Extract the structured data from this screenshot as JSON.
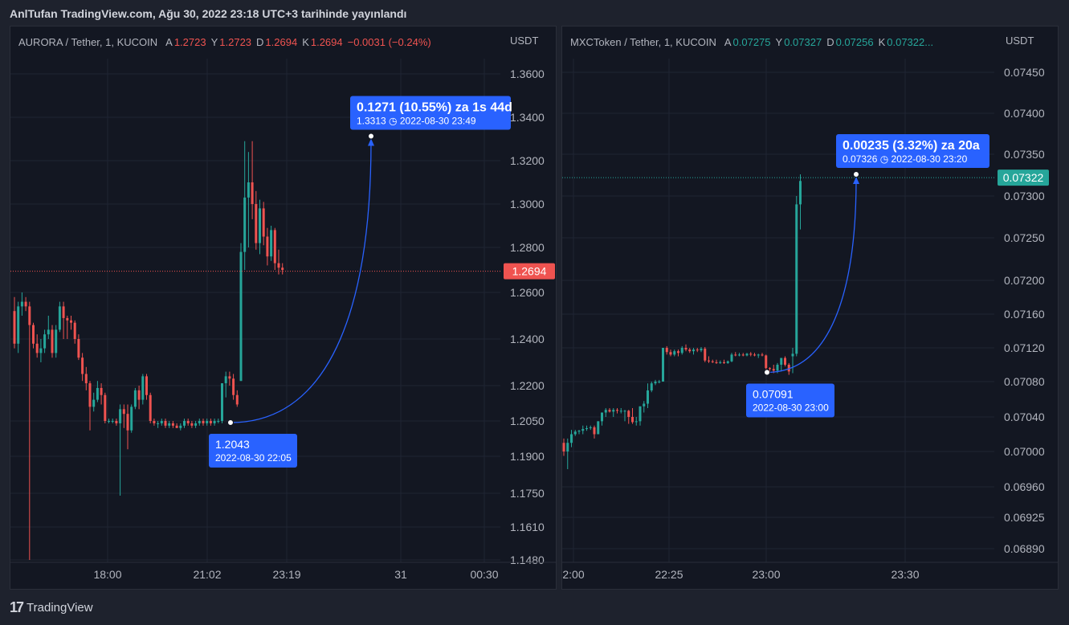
{
  "header": {
    "caption": "AnlTufan TradingView.com, Ağu 30, 2022 23:18 UTC+3 tarihinde yayınlandı"
  },
  "footer": {
    "brand": "TradingView",
    "logo_icon": "tradingview-logo-icon"
  },
  "colors": {
    "up": "#26a69a",
    "down": "#ef5350",
    "measure": "#2962ff",
    "bg": "#131722",
    "grid": "#1f2433",
    "text": "#b2b5be"
  },
  "left_pane": {
    "symbol": "AURORA / Tether, 1, KUCOIN",
    "ohlc": [
      {
        "k": "A",
        "v": "1.2723"
      },
      {
        "k": "Y",
        "v": "1.2723"
      },
      {
        "k": "D",
        "v": "1.2694"
      },
      {
        "k": "K",
        "v": "1.2694"
      }
    ],
    "change": "−0.0031 (−0.24%)",
    "ohlc_color": "#ef5350",
    "unit": "USDT",
    "last_price": "1.2694",
    "measure_text": "0.1271 (10.55%) za 1s 44d",
    "measure_sub": "1.3313 ◷ 2022-08-30  23:49",
    "start_label": "1.2043",
    "start_sub": "2022-08-30 22:05"
  },
  "right_pane": {
    "symbol": "MXCToken / Tether, 1, KUCOIN",
    "ohlc": [
      {
        "k": "A",
        "v": "0.07275"
      },
      {
        "k": "Y",
        "v": "0.07327"
      },
      {
        "k": "D",
        "v": "0.07256"
      },
      {
        "k": "K",
        "v": "0.07322..."
      }
    ],
    "change": "",
    "ohlc_color": "#26a69a",
    "unit": "USDT",
    "last_price": "0.07322",
    "measure_text": "0.00235 (3.32%) za 20a",
    "measure_sub": "0.07326 ◷ 2022-08-30  23:20",
    "start_label": "0.07091",
    "start_sub": "2022-08-30 23:00"
  },
  "chart_data": [
    {
      "type": "candlestick",
      "title": "AURORA / Tether, 1, KUCOIN",
      "y_ticks": [
        1.36,
        1.34,
        1.32,
        1.3,
        1.28,
        1.26,
        1.24,
        1.22,
        1.205,
        1.19,
        1.175,
        1.161,
        1.148
      ],
      "y_tick_labels": [
        "1.3600",
        "1.3400",
        "1.3200",
        "1.3000",
        "1.2800",
        "1.2600",
        "1.2400",
        "1.2200",
        "1.2050",
        "1.1900",
        "1.1750",
        "1.1610",
        "1.1480"
      ],
      "x_ticks": [
        "18:00",
        "21:02",
        "23:19",
        "31",
        "00:30"
      ],
      "last_price": 1.2694,
      "measure": {
        "start_price": 1.2043,
        "start_time": "2022-08-30 22:05",
        "end_price": 1.3313,
        "end_time": "2022-08-30 23:49",
        "change": 0.1271,
        "change_pct": 10.55
      },
      "candles": [
        [
          1.252,
          1.258,
          1.236,
          1.238
        ],
        [
          1.238,
          1.256,
          1.234,
          1.254
        ],
        [
          1.254,
          1.26,
          1.25,
          1.256
        ],
        [
          1.256,
          1.258,
          1.252,
          1.254
        ],
        [
          1.254,
          1.256,
          1.148,
          1.246
        ],
        [
          1.246,
          1.247,
          1.236,
          1.238
        ],
        [
          1.238,
          1.242,
          1.232,
          1.234
        ],
        [
          1.234,
          1.24,
          1.23,
          1.236
        ],
        [
          1.236,
          1.244,
          1.234,
          1.242
        ],
        [
          1.242,
          1.25,
          1.24,
          1.244
        ],
        [
          1.244,
          1.246,
          1.232,
          1.234
        ],
        [
          1.234,
          1.246,
          1.232,
          1.244
        ],
        [
          1.244,
          1.256,
          1.243,
          1.254
        ],
        [
          1.254,
          1.256,
          1.24,
          1.249
        ],
        [
          1.249,
          1.25,
          1.24,
          1.248
        ],
        [
          1.248,
          1.25,
          1.244,
          1.247
        ],
        [
          1.247,
          1.248,
          1.238,
          1.24
        ],
        [
          1.24,
          1.242,
          1.231,
          1.232
        ],
        [
          1.232,
          1.234,
          1.222,
          1.225
        ],
        [
          1.225,
          1.228,
          1.218,
          1.221
        ],
        [
          1.221,
          1.222,
          1.201,
          1.211
        ],
        [
          1.211,
          1.217,
          1.209,
          1.214
        ],
        [
          1.214,
          1.222,
          1.213,
          1.219
        ],
        [
          1.219,
          1.221,
          1.212,
          1.216
        ],
        [
          1.216,
          1.217,
          1.204,
          1.205
        ],
        [
          1.205,
          1.206,
          1.204,
          1.205
        ],
        [
          1.205,
          1.206,
          1.204,
          1.205
        ],
        [
          1.205,
          1.206,
          1.203,
          1.204
        ],
        [
          1.204,
          1.212,
          1.174,
          1.21
        ],
        [
          1.21,
          1.212,
          1.202,
          1.208
        ],
        [
          1.208,
          1.212,
          1.193,
          1.201
        ],
        [
          1.201,
          1.212,
          1.2,
          1.211
        ],
        [
          1.211,
          1.219,
          1.21,
          1.218
        ],
        [
          1.218,
          1.22,
          1.21,
          1.214
        ],
        [
          1.214,
          1.225,
          1.212,
          1.224
        ],
        [
          1.224,
          1.225,
          1.214,
          1.216
        ],
        [
          1.216,
          1.217,
          1.204,
          1.205
        ],
        [
          1.205,
          1.206,
          1.203,
          1.204
        ],
        [
          1.204,
          1.205,
          1.202,
          1.204
        ],
        [
          1.204,
          1.206,
          1.203,
          1.205
        ],
        [
          1.205,
          1.206,
          1.202,
          1.203
        ],
        [
          1.203,
          1.205,
          1.202,
          1.204
        ],
        [
          1.204,
          1.205,
          1.202,
          1.203
        ],
        [
          1.203,
          1.204,
          1.202,
          1.202
        ],
        [
          1.202,
          1.204,
          1.201,
          1.203
        ],
        [
          1.203,
          1.206,
          1.202,
          1.205
        ],
        [
          1.205,
          1.206,
          1.203,
          1.204
        ],
        [
          1.204,
          1.205,
          1.202,
          1.203
        ],
        [
          1.203,
          1.205,
          1.202,
          1.204
        ],
        [
          1.204,
          1.206,
          1.203,
          1.205
        ],
        [
          1.205,
          1.206,
          1.203,
          1.204
        ],
        [
          1.204,
          1.206,
          1.203,
          1.205
        ],
        [
          1.205,
          1.206,
          1.203,
          1.204
        ],
        [
          1.204,
          1.206,
          1.203,
          1.205
        ],
        [
          1.205,
          1.206,
          1.204,
          1.205
        ],
        [
          1.205,
          1.221,
          1.204,
          1.221
        ],
        [
          1.221,
          1.226,
          1.215,
          1.224
        ],
        [
          1.224,
          1.226,
          1.22,
          1.223
        ],
        [
          1.223,
          1.225,
          1.214,
          1.216
        ],
        [
          1.216,
          1.218,
          1.211,
          1.212
        ],
        [
          1.222,
          1.282,
          1.222,
          1.278
        ],
        [
          1.278,
          1.329,
          1.27,
          1.303
        ],
        [
          1.303,
          1.324,
          1.28,
          1.31
        ],
        [
          1.31,
          1.329,
          1.293,
          1.3
        ],
        [
          1.3,
          1.306,
          1.279,
          1.282
        ],
        [
          1.282,
          1.302,
          1.277,
          1.298
        ],
        [
          1.298,
          1.301,
          1.281,
          1.285
        ],
        [
          1.285,
          1.289,
          1.272,
          1.276
        ],
        [
          1.276,
          1.29,
          1.274,
          1.288
        ],
        [
          1.288,
          1.289,
          1.27,
          1.273
        ],
        [
          1.273,
          1.279,
          1.268,
          1.271
        ],
        [
          1.271,
          1.273,
          1.268,
          1.27
        ]
      ]
    },
    {
      "type": "candlestick",
      "title": "MXCToken / Tether, 1, KUCOIN",
      "y_ticks": [
        0.0745,
        0.074,
        0.0735,
        0.073,
        0.0725,
        0.072,
        0.0716,
        0.0712,
        0.0708,
        0.0704,
        0.07,
        0.0696,
        0.06925,
        0.0689
      ],
      "y_tick_labels": [
        "0.07450",
        "0.07400",
        "0.07350",
        "0.07300",
        "0.07250",
        "0.07200",
        "0.07160",
        "0.07120",
        "0.07080",
        "0.07040",
        "0.07000",
        "0.06960",
        "0.06925",
        "0.06890"
      ],
      "x_ticks": [
        "2:00",
        "22:25",
        "23:00",
        "23:30"
      ],
      "last_price": 0.07322,
      "measure": {
        "start_price": 0.07091,
        "start_time": "2022-08-30 23:00",
        "end_price": 0.07326,
        "end_time": "2022-08-30 23:20",
        "change": 0.00235,
        "change_pct": 3.32
      },
      "candles": [
        [
          0.0701,
          0.07015,
          0.06995,
          0.07
        ],
        [
          0.07,
          0.07015,
          0.0698,
          0.0701
        ],
        [
          0.0701,
          0.07025,
          0.07005,
          0.0702
        ],
        [
          0.0702,
          0.07025,
          0.07018,
          0.07023
        ],
        [
          0.07023,
          0.07025,
          0.0702,
          0.07024
        ],
        [
          0.07024,
          0.0703,
          0.0702,
          0.07026
        ],
        [
          0.07026,
          0.0703,
          0.07024,
          0.07027
        ],
        [
          0.07027,
          0.0703,
          0.07025,
          0.07028
        ],
        [
          0.07028,
          0.0703,
          0.07015,
          0.0702
        ],
        [
          0.0702,
          0.07035,
          0.0702,
          0.07035
        ],
        [
          0.07035,
          0.07045,
          0.0703,
          0.07045
        ],
        [
          0.07045,
          0.0705,
          0.0704,
          0.07048
        ],
        [
          0.07048,
          0.0705,
          0.07045,
          0.07046
        ],
        [
          0.07046,
          0.0705,
          0.0704,
          0.07048
        ],
        [
          0.07048,
          0.0705,
          0.07044,
          0.07047
        ],
        [
          0.07047,
          0.0705,
          0.07044,
          0.07047
        ],
        [
          0.07047,
          0.07048,
          0.07035,
          0.07047
        ],
        [
          0.07047,
          0.07048,
          0.07032,
          0.0704
        ],
        [
          0.0704,
          0.0705,
          0.07032,
          0.07034
        ],
        [
          0.07034,
          0.0704,
          0.0703,
          0.07035
        ],
        [
          0.07035,
          0.07052,
          0.0703,
          0.07052
        ],
        [
          0.07052,
          0.07058,
          0.07045,
          0.07055
        ],
        [
          0.07055,
          0.07078,
          0.0705,
          0.0707
        ],
        [
          0.0707,
          0.0708,
          0.07068,
          0.07078
        ],
        [
          0.07078,
          0.07082,
          0.07076,
          0.0708
        ],
        [
          0.0708,
          0.07082,
          0.07078,
          0.0708
        ],
        [
          0.0708,
          0.0712,
          0.0708,
          0.0712
        ],
        [
          0.0712,
          0.07122,
          0.07112,
          0.07115
        ],
        [
          0.07115,
          0.07118,
          0.0711,
          0.07112
        ],
        [
          0.07112,
          0.07118,
          0.0711,
          0.07116
        ],
        [
          0.07116,
          0.07118,
          0.0711,
          0.07114
        ],
        [
          0.07114,
          0.07122,
          0.07112,
          0.0712
        ],
        [
          0.0712,
          0.07124,
          0.07116,
          0.07118
        ],
        [
          0.07118,
          0.0712,
          0.07114,
          0.07116
        ],
        [
          0.07116,
          0.0712,
          0.07112,
          0.07118
        ],
        [
          0.07118,
          0.0712,
          0.07115,
          0.07117
        ],
        [
          0.07117,
          0.07121,
          0.07115,
          0.07119
        ],
        [
          0.07119,
          0.07121,
          0.07103,
          0.07105
        ],
        [
          0.07105,
          0.0711,
          0.07102,
          0.07104
        ],
        [
          0.07104,
          0.07106,
          0.07102,
          0.07103
        ],
        [
          0.07103,
          0.07106,
          0.07101,
          0.07102
        ],
        [
          0.07102,
          0.07105,
          0.07101,
          0.07103
        ],
        [
          0.07103,
          0.07106,
          0.07101,
          0.07102
        ],
        [
          0.07102,
          0.07105,
          0.07101,
          0.07104
        ],
        [
          0.07104,
          0.07114,
          0.07103,
          0.07112
        ],
        [
          0.07112,
          0.07115,
          0.0711,
          0.07111
        ],
        [
          0.07111,
          0.07114,
          0.0711,
          0.07112
        ],
        [
          0.07112,
          0.07114,
          0.0711,
          0.07111
        ],
        [
          0.07111,
          0.07114,
          0.0711,
          0.07113
        ],
        [
          0.07113,
          0.07115,
          0.0711,
          0.07112
        ],
        [
          0.07112,
          0.07114,
          0.0711,
          0.07111
        ],
        [
          0.07111,
          0.07113,
          0.07108,
          0.07112
        ],
        [
          0.07112,
          0.07114,
          0.0711,
          0.07111
        ],
        [
          0.07111,
          0.07112,
          0.07094,
          0.07096
        ],
        [
          0.07096,
          0.07097,
          0.0709,
          0.07095
        ],
        [
          0.07095,
          0.071,
          0.0709,
          0.07093
        ],
        [
          0.07093,
          0.07102,
          0.0709,
          0.071
        ],
        [
          0.071,
          0.07108,
          0.07092,
          0.07108
        ],
        [
          0.07108,
          0.0711,
          0.07098,
          0.071
        ],
        [
          0.071,
          0.07102,
          0.07088,
          0.07092
        ],
        [
          0.0711,
          0.0712,
          0.0709,
          0.07113
        ],
        [
          0.07113,
          0.073,
          0.0711,
          0.0729
        ],
        [
          0.0729,
          0.07326,
          0.0726,
          0.07318
        ]
      ]
    }
  ]
}
